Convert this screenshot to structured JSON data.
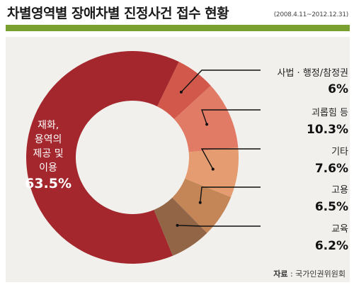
{
  "header": {
    "title": "차별영역별 장애차별 진정사건 접수 현황",
    "period": "(2008.4.11~2012.12.31)"
  },
  "source": {
    "label": "자료",
    "sep": " : ",
    "value": "국가인권위원회"
  },
  "chart_data": {
    "type": "pie",
    "donut": true,
    "title": "차별영역별 장애차별 진정사건 접수 현황",
    "slices": [
      {
        "label": "재화,\n용역의\n제공 및\n이용",
        "value": 63.5,
        "display": "63.5%",
        "color": "#a3272d"
      },
      {
        "label": "사법 · 행정/참정권",
        "value": 6,
        "display": "6%",
        "color": "#d1584a"
      },
      {
        "label": "괴롭힘 등",
        "value": 10.3,
        "display": "10.3%",
        "color": "#e27b66"
      },
      {
        "label": "기타",
        "value": 7.6,
        "display": "7.6%",
        "color": "#e49c70"
      },
      {
        "label": "고용",
        "value": 6.5,
        "display": "6.5%",
        "color": "#c48657"
      },
      {
        "label": "교육",
        "value": 6.2,
        "display": "6.2%",
        "color": "#936547"
      }
    ]
  }
}
